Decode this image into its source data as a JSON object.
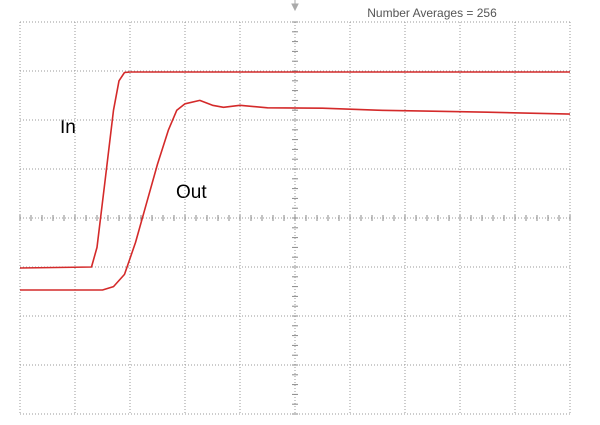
{
  "chart_data": {
    "type": "line",
    "header": "Number Averages = 256",
    "annotations": [
      "In",
      "Out"
    ],
    "xlim": [
      0,
      10
    ],
    "ylim": [
      0,
      8
    ],
    "series": [
      {
        "name": "In",
        "color": "#d42a2a",
        "x": [
          0,
          1.3,
          1.4,
          1.55,
          1.7,
          1.8,
          1.9,
          2.0,
          10
        ],
        "values": [
          2.98,
          3.0,
          3.4,
          4.8,
          6.2,
          6.8,
          6.97,
          6.98,
          6.98
        ]
      },
      {
        "name": "Out",
        "color": "#d42a2a",
        "x": [
          0,
          1.5,
          1.7,
          1.9,
          2.1,
          2.3,
          2.5,
          2.7,
          2.85,
          3.0,
          3.27,
          3.5,
          3.7,
          4.0,
          4.5,
          5.5,
          6.5,
          7.5,
          8.5,
          10
        ],
        "values": [
          2.53,
          2.53,
          2.6,
          2.85,
          3.5,
          4.3,
          5.1,
          5.8,
          6.2,
          6.33,
          6.4,
          6.3,
          6.26,
          6.3,
          6.25,
          6.24,
          6.2,
          6.18,
          6.16,
          6.12
        ]
      }
    ]
  }
}
